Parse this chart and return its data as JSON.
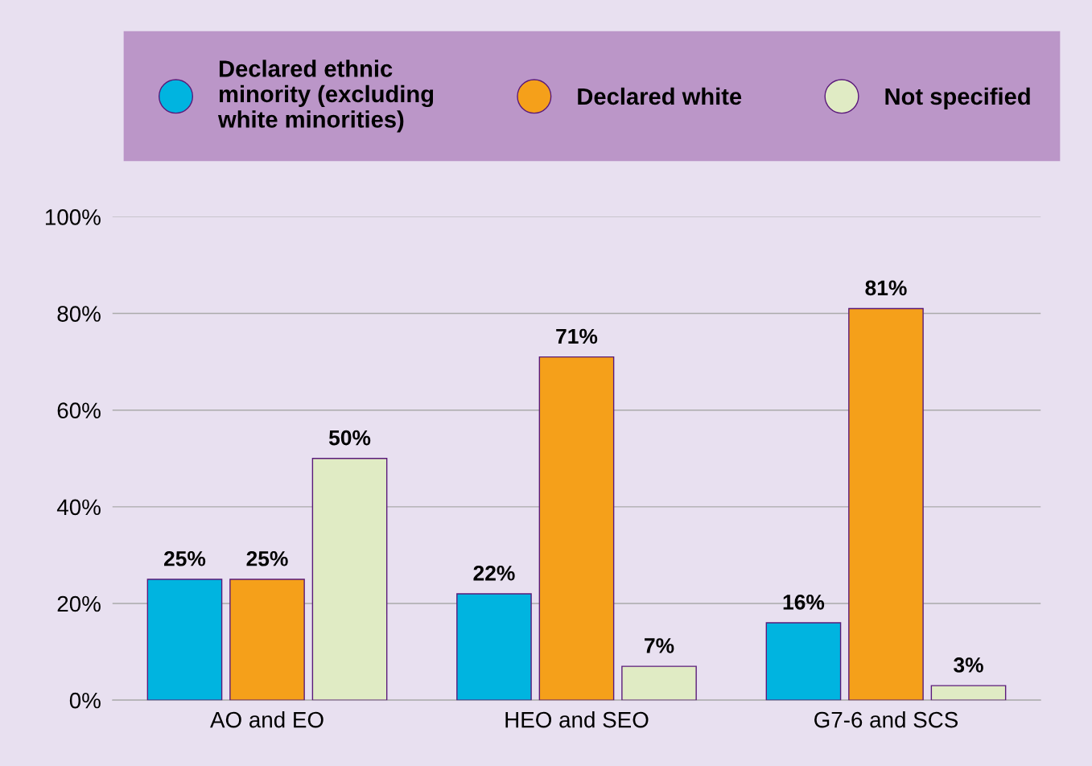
{
  "chart_data": {
    "type": "bar",
    "categories": [
      "AO and EO",
      "HEO and SEO",
      "G7-6 and SCS"
    ],
    "series": [
      {
        "name": "Declared ethnic\nminority (excluding\nwhite minorities)",
        "color": "#00b4e0",
        "values": [
          25,
          22,
          16
        ],
        "value_labels": [
          "25%",
          "22%",
          "16%"
        ]
      },
      {
        "name": "Declared white",
        "color": "#f5a01a",
        "values": [
          25,
          71,
          81
        ],
        "value_labels": [
          "25%",
          "71%",
          "81%"
        ]
      },
      {
        "name": "Not specified",
        "color": "#e0ebc4",
        "values": [
          50,
          7,
          3
        ],
        "value_labels": [
          "50%",
          "7%",
          "3%"
        ]
      }
    ],
    "ylim": [
      0,
      100
    ],
    "yticks": [
      {
        "value": 0,
        "label": "0%"
      },
      {
        "value": 20,
        "label": "20%"
      },
      {
        "value": 40,
        "label": "40%"
      },
      {
        "value": 60,
        "label": "60%"
      },
      {
        "value": 80,
        "label": "80%"
      },
      {
        "value": 100,
        "label": "100%"
      }
    ],
    "grid": "y",
    "legend": "top"
  }
}
